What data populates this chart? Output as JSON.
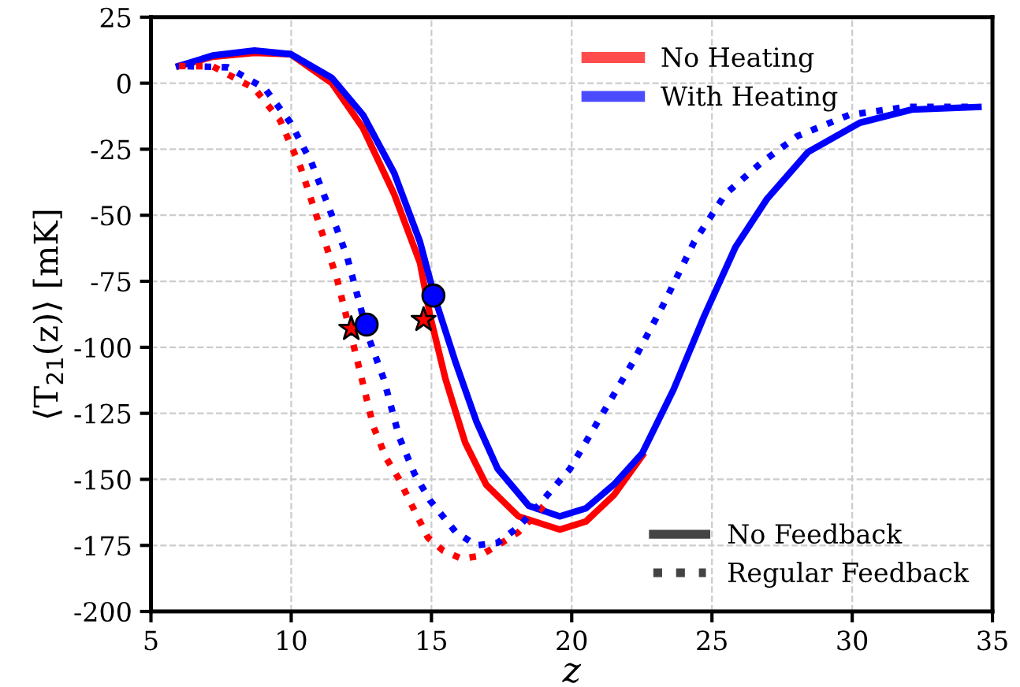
{
  "chart_data": {
    "type": "line",
    "xlabel": "z",
    "ylabel": "⟨T$_{21}$(z)⟩ [mK]",
    "xlim": [
      5,
      35
    ],
    "ylim": [
      -200,
      25
    ],
    "xticks": [
      5,
      10,
      15,
      20,
      25,
      30,
      35
    ],
    "yticks": [
      -200,
      -175,
      -150,
      -125,
      -100,
      -75,
      -50,
      -25,
      0,
      25
    ],
    "grid": true,
    "legend": "top right",
    "annotations": [
      "No Feedback",
      "Regular Feedback"
    ],
    "series": [
      {
        "name": "No Heating",
        "color": "#ff0000",
        "line_style": "solid",
        "x": [
          6,
          7.2,
          8.69,
          9.98,
          11.45,
          12.56,
          13.67,
          14.59,
          14.95,
          15.5,
          16.2,
          16.95,
          18.1,
          19.57,
          20.5,
          21.5,
          22.52
        ],
        "values": [
          6.5,
          10,
          11.5,
          11,
          0,
          -17,
          -42,
          -68,
          -88,
          -112,
          -136,
          -152,
          -164,
          -169,
          -166,
          -156,
          -141
        ]
      },
      {
        "name": "With Heating",
        "color": "#0000ff",
        "line_style": "solid",
        "x": [
          6,
          7.2,
          8.69,
          9.98,
          11.45,
          12.56,
          13.67,
          14.59,
          15.14,
          15.87,
          16.6,
          17.36,
          18.47,
          19.57,
          20.5,
          21.5,
          22.52,
          23.63,
          24.73,
          25.84,
          26.95,
          28.43,
          30.27,
          32.12,
          34.5
        ],
        "values": [
          6.5,
          10.5,
          12.4,
          11,
          2,
          -12,
          -34,
          -60,
          -82,
          -106,
          -128,
          -146,
          -160,
          -164,
          -161,
          -152,
          -140,
          -116,
          -88,
          -62,
          -44,
          -26,
          -15,
          -10,
          -9
        ]
      },
      {
        "color": "#ff0000",
        "line_style": "dotted",
        "x": [
          6,
          7.2,
          8.69,
          9.6,
          10.34,
          11.08,
          11.63,
          12.38,
          12.93,
          13.39,
          13.85,
          14.31,
          14.87,
          15.42,
          16.07,
          16.71,
          17.36,
          18.1,
          18.56,
          19.0
        ],
        "values": [
          6.5,
          6.4,
          -2,
          -14,
          -32,
          -56,
          -74,
          -106,
          -130,
          -142,
          -150,
          -160,
          -172,
          -177,
          -180,
          -179,
          -175,
          -170,
          -165,
          -160
        ]
      },
      {
        "color": "#0000ff",
        "line_style": "dotted",
        "x": [
          6,
          7.75,
          9.06,
          9.98,
          10.72,
          11.45,
          12.0,
          12.75,
          13.3,
          13.85,
          14.4,
          14.95,
          15.87,
          16.6,
          17.36,
          18.1,
          18.8,
          19.94,
          21.05,
          22.16,
          23.26,
          24.37,
          25.48,
          26.77,
          28.05,
          29.9,
          31.93,
          34.5
        ],
        "values": [
          6.5,
          6,
          -2,
          -15,
          -30,
          -50,
          -66,
          -96,
          -112,
          -134,
          -148,
          -158,
          -170,
          -175,
          -174,
          -168,
          -160,
          -146,
          -126,
          -106,
          -84,
          -60,
          -42,
          -30,
          -20,
          -12,
          -9,
          -9
        ]
      },
      {
        "type": "scatter",
        "marker": "star",
        "color": "#ff0000",
        "x": [
          12.14,
          14.72
        ],
        "values": [
          -93,
          -89.6
        ]
      },
      {
        "type": "scatter",
        "marker": "circle",
        "color": "#0000ff",
        "x": [
          12.69,
          15.07
        ],
        "values": [
          -91.4,
          -80.4
        ]
      }
    ]
  }
}
